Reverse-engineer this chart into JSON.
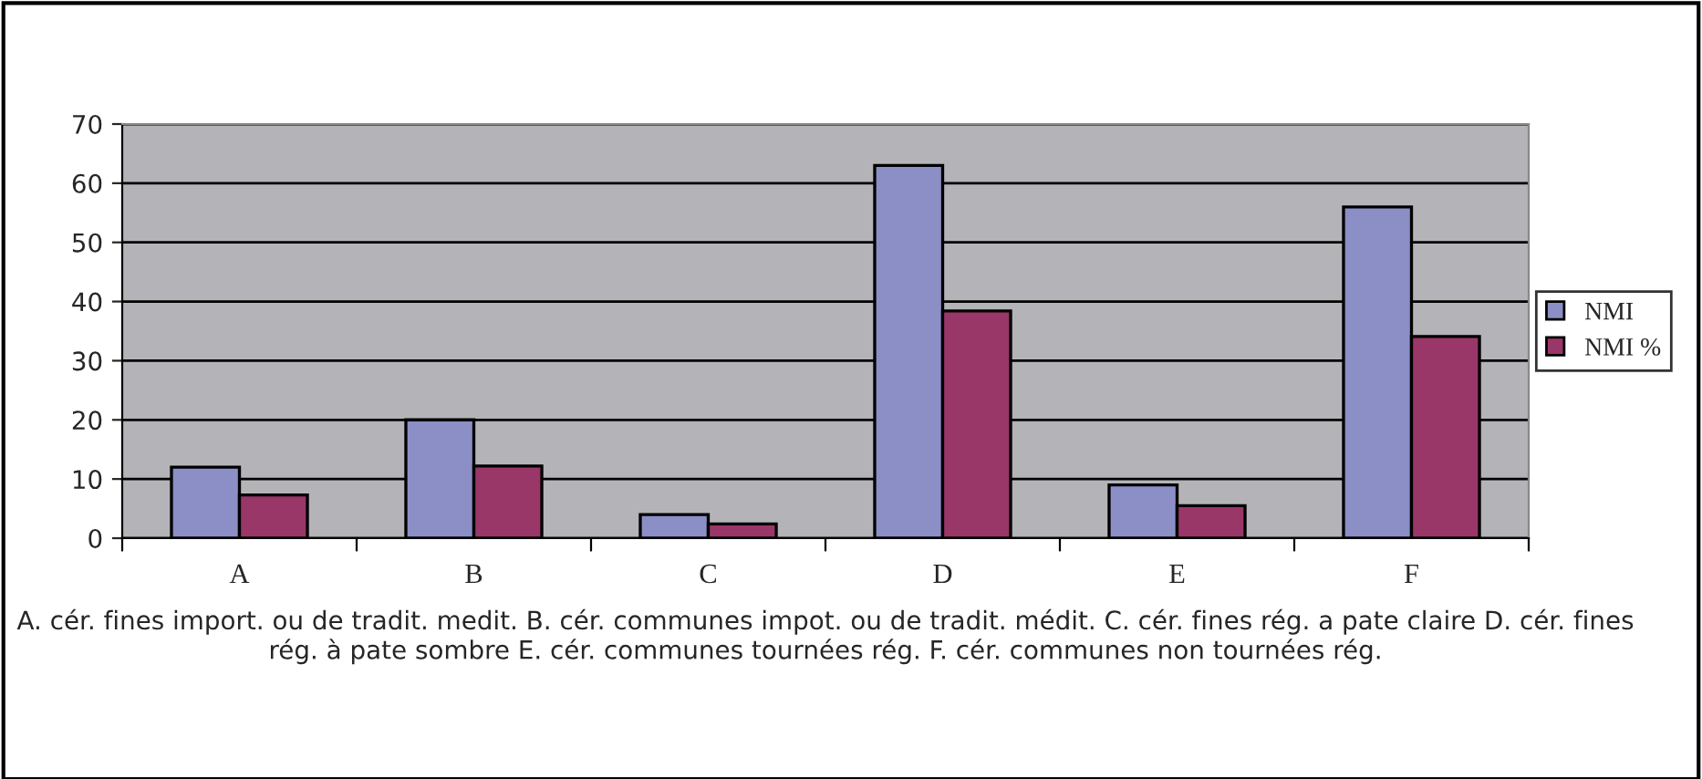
{
  "chart_data": {
    "type": "bar",
    "xlabel": "A. cér. fines import. ou de tradit. medit. B. cér. communes impot. ou de tradit. médit. C. cér. fines rég. a pate claire D. cér. fines rég. à pate sombre E. cér. communes tournées rég. F. cér. communes non tournées rég.",
    "categories": [
      "A",
      "B",
      "C",
      "D",
      "E",
      "F"
    ],
    "series": [
      {
        "name": "NMI",
        "color": "#8b8fc6",
        "values": [
          12,
          20,
          4,
          63,
          9,
          56
        ]
      },
      {
        "name": "NMI %",
        "color": "#993769",
        "values": [
          7.3,
          12.2,
          2.4,
          38.4,
          5.5,
          34.1
        ]
      }
    ],
    "ylim": [
      0,
      70
    ],
    "yticks": [
      0,
      10,
      20,
      30,
      40,
      50,
      60,
      70
    ],
    "grid": "y",
    "legend": "right"
  }
}
